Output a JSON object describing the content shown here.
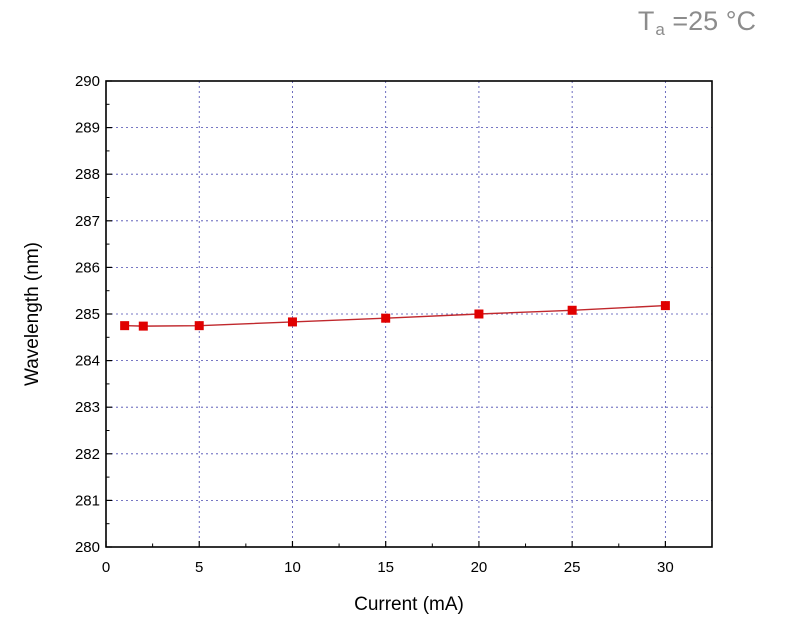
{
  "annotation": {
    "main": "T",
    "sub": "a",
    "rest": " =25 °C"
  },
  "chart_data": {
    "type": "line",
    "title": "",
    "xlabel": "Current (mA)",
    "ylabel": "Wavelength (nm)",
    "xlim": [
      0,
      32.5
    ],
    "ylim": [
      280,
      290
    ],
    "xticks": [
      0,
      5,
      10,
      15,
      20,
      25,
      30
    ],
    "yticks": [
      280,
      281,
      282,
      283,
      284,
      285,
      286,
      287,
      288,
      289,
      290
    ],
    "grid": true,
    "series": [
      {
        "color": "#e00000",
        "line_color": "#c0282d",
        "marker": "square",
        "x": [
          1,
          2,
          5,
          10,
          15,
          20,
          25,
          30
        ],
        "y": [
          284.75,
          284.74,
          284.75,
          284.83,
          284.91,
          285.0,
          285.08,
          285.18
        ]
      }
    ]
  }
}
